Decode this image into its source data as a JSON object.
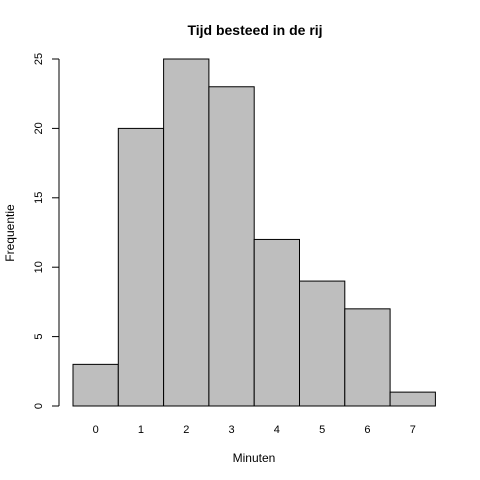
{
  "chart_data": {
    "type": "bar",
    "title": "Tijd besteed in de rij",
    "xlabel": "Minuten",
    "ylabel": "Frequentie",
    "categories": [
      "0",
      "1",
      "2",
      "3",
      "4",
      "5",
      "6",
      "7"
    ],
    "values": [
      3,
      20,
      25,
      23,
      12,
      9,
      7,
      1
    ],
    "ylim": [
      0,
      25
    ],
    "yticks": [
      0,
      5,
      10,
      15,
      20,
      25
    ],
    "grid": false,
    "bar_color": "#bebebe",
    "legend": "none"
  }
}
